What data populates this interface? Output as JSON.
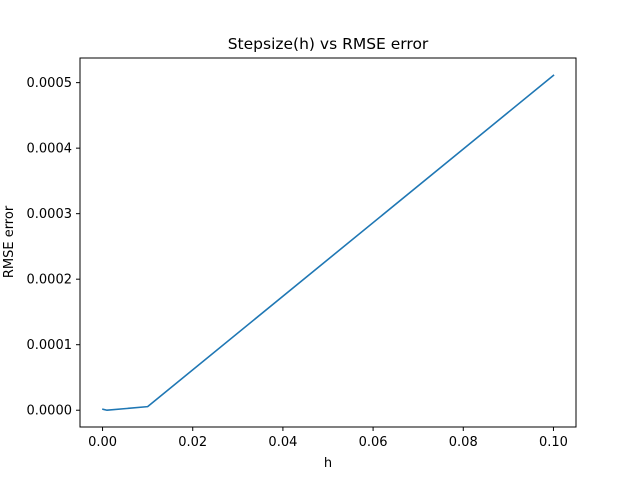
{
  "chart_data": {
    "type": "line",
    "title": "Stepsize(h) vs RMSE error",
    "xlabel": "h",
    "ylabel": "RMSE error",
    "xlim": [
      -0.005,
      0.105
    ],
    "ylim": [
      -2.56e-05,
      0.0005376
    ],
    "xticks": [
      0.0,
      0.02,
      0.04,
      0.06,
      0.08,
      0.1
    ],
    "xtick_labels": [
      "0.00",
      "0.02",
      "0.04",
      "0.06",
      "0.08",
      "0.10"
    ],
    "yticks": [
      0.0,
      0.0001,
      0.0002,
      0.0003,
      0.0004,
      0.0005
    ],
    "ytick_labels": [
      "0.0000",
      "0.0001",
      "0.0002",
      "0.0003",
      "0.0004",
      "0.0005"
    ],
    "grid": false,
    "series": [
      {
        "color": "#1f77b4",
        "x": [
          0.0001,
          0.001,
          0.01,
          0.1
        ],
        "y": [
          1.5e-06,
          0.0,
          5.5e-06,
          0.000511
        ]
      }
    ]
  }
}
